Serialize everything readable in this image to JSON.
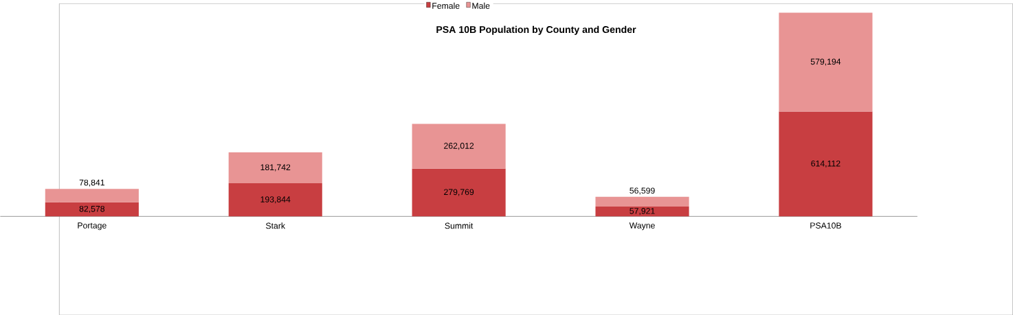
{
  "chart_data": {
    "type": "bar",
    "title": "PSA 10B Population by County and Gender",
    "stacked": true,
    "legend": "top",
    "categories": [
      "Portage",
      "Stark",
      "Summit",
      "Wayne",
      "PSA10B"
    ],
    "series": [
      {
        "name": "Female",
        "color": "#c83e41",
        "values": [
          82578,
          193844,
          279769,
          57921,
          614112
        ],
        "value_labels": [
          "82,578",
          "193,844",
          "279,769",
          "57,921",
          "614,112"
        ]
      },
      {
        "name": "Male",
        "color": "#e89494",
        "values": [
          78841,
          181742,
          262012,
          56599,
          579194
        ],
        "value_labels": [
          "78,841",
          "181,742",
          "262,012",
          "56,599",
          "579,194"
        ]
      }
    ]
  }
}
